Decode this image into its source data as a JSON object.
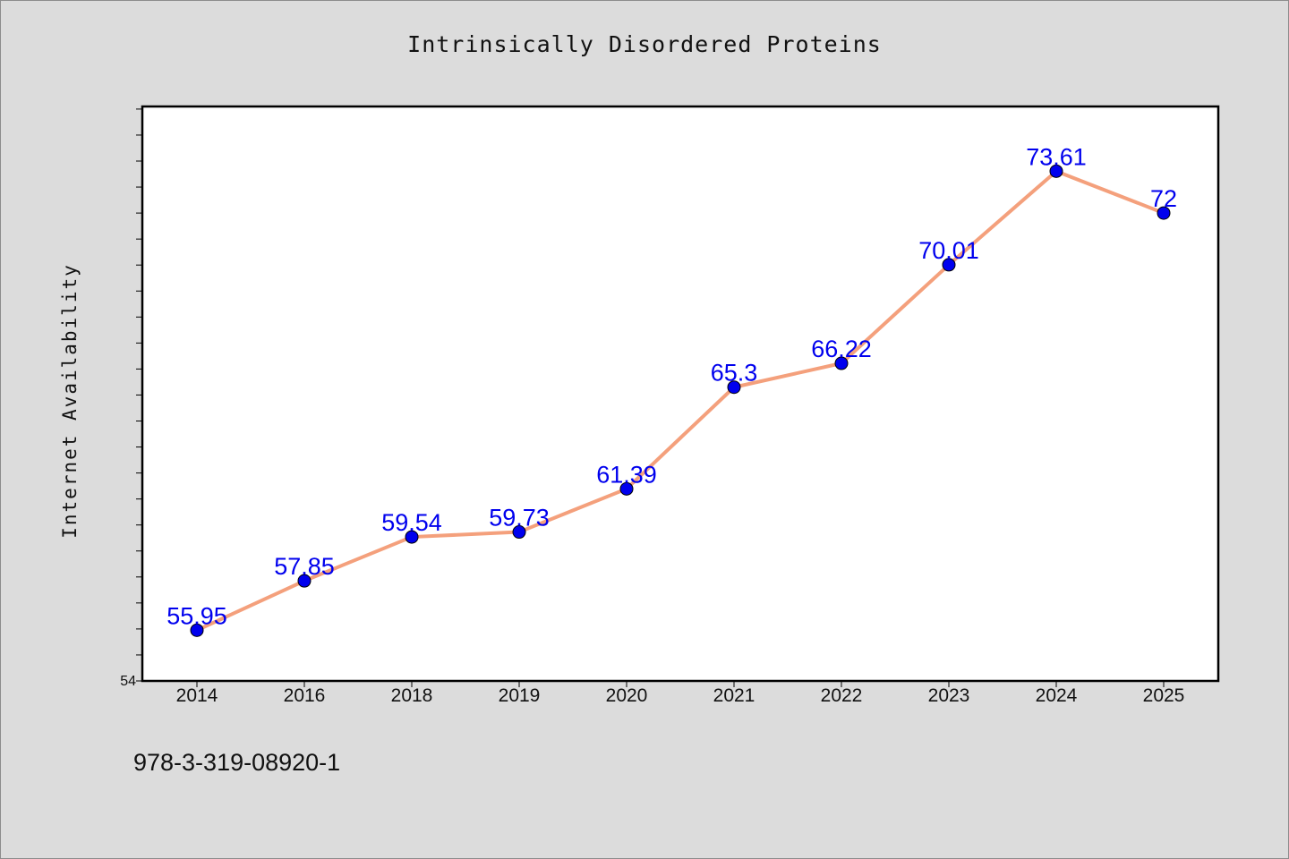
{
  "chart_data": {
    "type": "line",
    "title": "Intrinsically Disordered Proteins",
    "xlabel": "",
    "ylabel": "Internet Availability",
    "categories": [
      "2014",
      "2016",
      "2018",
      "2019",
      "2020",
      "2021",
      "2022",
      "2023",
      "2024",
      "2025"
    ],
    "series": [
      {
        "values": [
          55.95,
          57.85,
          59.54,
          59.73,
          61.39,
          65.3,
          66.22,
          70.01,
          73.61,
          72
        ],
        "labels": [
          "55.95",
          "57.85",
          "59.54",
          "59.73",
          "61.39",
          "65.3",
          "66.22",
          "70.01",
          "73.61",
          "72"
        ]
      }
    ],
    "ylim": [
      54,
      76.1
    ],
    "y_tick_labels": [
      "54"
    ],
    "grid": false,
    "line_color": "#f4a07c",
    "marker_color": "#0000ee",
    "label_color": "#0000ee"
  },
  "footer": {
    "isbn": "978-3-319-08920-1"
  }
}
